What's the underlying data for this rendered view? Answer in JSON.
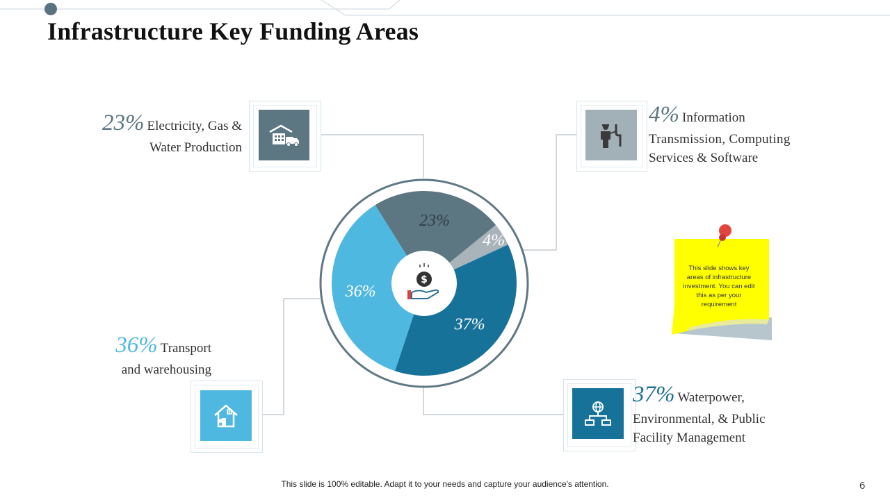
{
  "slide": {
    "title": "Infrastructure Key Funding Areas",
    "footer_text": "This slide is 100% editable. Adapt it to your needs and capture your audience's attention.",
    "page_number": "6"
  },
  "areas": [
    {
      "percent": "23%",
      "line1": "Electricity, Gas &",
      "line2": "Water Production",
      "line3": "",
      "color": "#5c7682",
      "icon": "warehouse-truck-icon"
    },
    {
      "percent": "4%",
      "line1": "Information",
      "line2": "Transmission, Computing",
      "line3": "Services & Software",
      "color": "#5c7682",
      "icon": "technician-icon"
    },
    {
      "percent": "36%",
      "line1": "Transport",
      "line2": "and warehousing",
      "line3": "",
      "color": "#4fb8e0",
      "icon": "house-icon"
    },
    {
      "percent": "37%",
      "line1": "Waterpower,",
      "line2": "Environmental, & Public",
      "line3": "Facility Management",
      "color": "#1b6f94",
      "icon": "network-globe-icon"
    }
  ],
  "center_icon": "hand-money-icon",
  "sticky_note": {
    "text_lines": [
      "This slide shows key",
      "areas of infrastructure",
      "investment. You can edit",
      "this as per your",
      "requirement"
    ],
    "color": "#ffff00",
    "pin_icon": "push-pin-icon"
  },
  "chart_data": {
    "type": "pie",
    "categories": [
      "Electricity, Gas & Water Production",
      "Information Transmission, Computing Services & Software",
      "Waterpower, Environmental, & Public Facility Management",
      "Transport and warehousing"
    ],
    "values": [
      23,
      4,
      37,
      36
    ],
    "labels": [
      "23%",
      "4%",
      "37%",
      "36%"
    ],
    "colors": [
      "#5c7682",
      "#a8b4ba",
      "#17729a",
      "#4fb8e0"
    ]
  }
}
